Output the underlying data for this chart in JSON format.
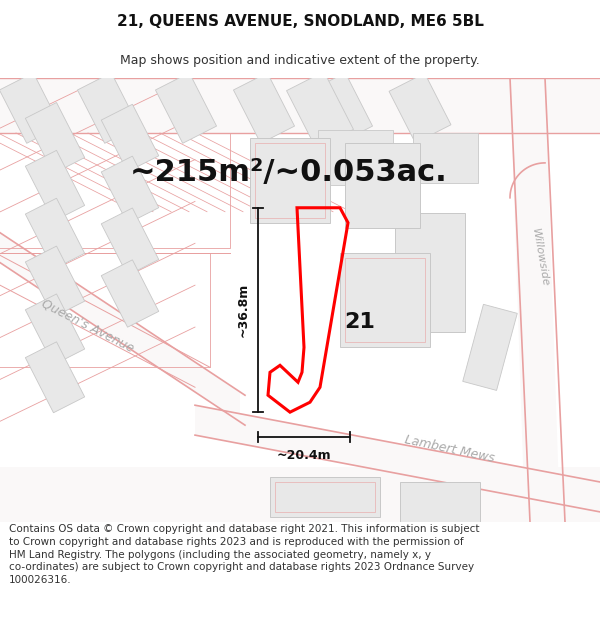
{
  "title": "21, QUEENS AVENUE, SNODLAND, ME6 5BL",
  "subtitle": "Map shows position and indicative extent of the property.",
  "area_text": "~215m²/~0.053ac.",
  "number_label": "21",
  "dim_horizontal": "~20.4m",
  "dim_vertical": "~36.8m",
  "street_label_1": "Queen's Avenue",
  "street_label_2": "Lambert Mews",
  "street_label_3": "Willowside",
  "copyright_text": "Contains OS data © Crown copyright and database right 2021. This information is subject to Crown copyright and database rights 2023 and is reproduced with the permission of HM Land Registry. The polygons (including the associated geometry, namely x, y co-ordinates) are subject to Crown copyright and database rights 2023 Ordnance Survey 100026316.",
  "bg_color": "#ffffff",
  "road_line_color": "#e8a0a0",
  "building_fill": "#e8e8e8",
  "building_edge": "#c8c8c8",
  "road_fill": "#ffffff",
  "title_fontsize": 11,
  "subtitle_fontsize": 9,
  "area_fontsize": 22,
  "number_fontsize": 16,
  "copyright_fontsize": 7.5
}
